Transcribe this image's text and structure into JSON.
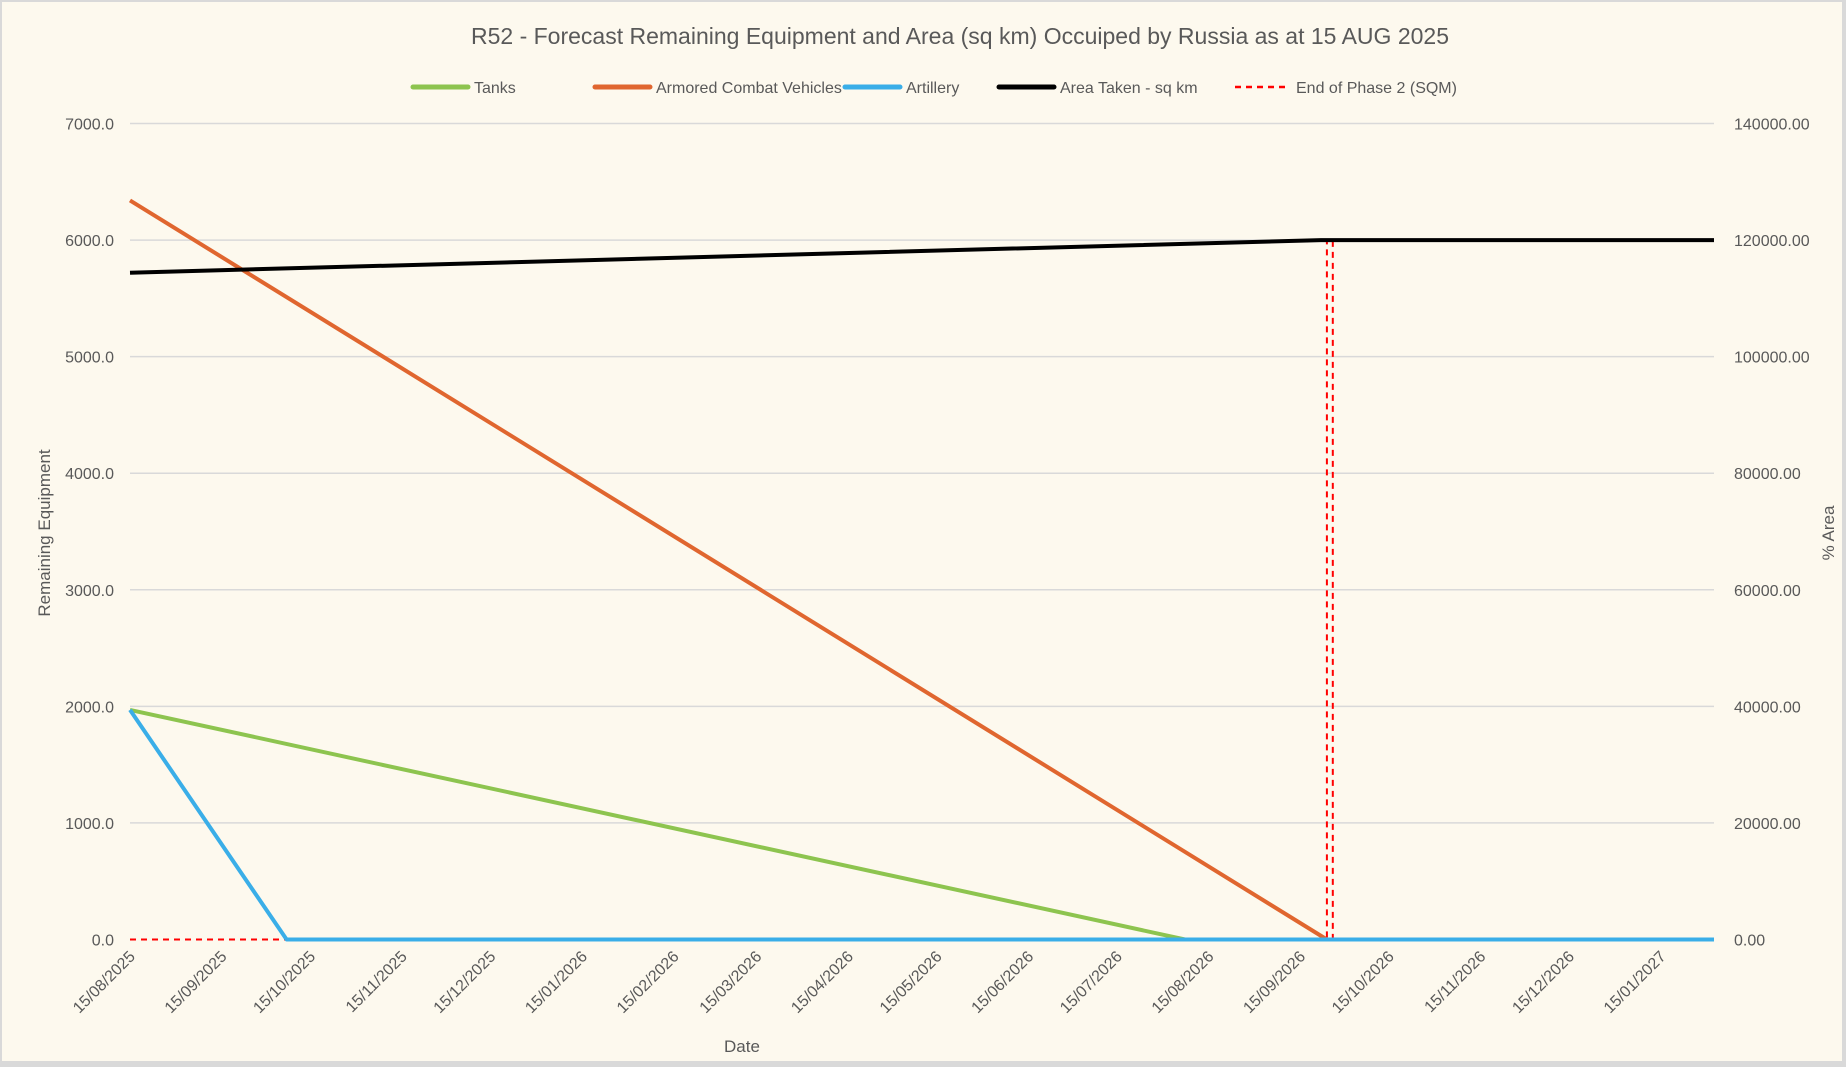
{
  "chart_data": {
    "type": "line",
    "title": "R52 - Forecast Remaining Equipment and Area (sq km) Occuiped by Russia as at 15 AUG 2025",
    "xlabel": "Date",
    "ylabel": "Remaining Equipment",
    "y2label": "% Area",
    "xlim": [
      "15/08/2025",
      "02/02/2027"
    ],
    "ylim": [
      0,
      7000
    ],
    "y2lim": [
      0,
      140000
    ],
    "yticks": [
      "0.0",
      "1000.0",
      "2000.0",
      "3000.0",
      "4000.0",
      "5000.0",
      "6000.0",
      "7000.0"
    ],
    "y2ticks": [
      "0.00",
      "20000.00",
      "40000.00",
      "60000.00",
      "80000.00",
      "100000.00",
      "120000.00",
      "140000.00"
    ],
    "xticks": [
      "15/08/2025",
      "15/09/2025",
      "15/10/2025",
      "15/11/2025",
      "15/12/2025",
      "15/01/2026",
      "15/02/2026",
      "15/03/2026",
      "15/04/2026",
      "15/05/2026",
      "15/06/2026",
      "15/07/2026",
      "15/08/2026",
      "15/09/2026",
      "15/10/2026",
      "15/11/2026",
      "15/12/2026",
      "15/01/2027"
    ],
    "grid": true,
    "legend": "top",
    "series": [
      {
        "name": "Tanks",
        "axis": "left",
        "color": "#8dc44f",
        "style": "solid",
        "x": [
          "15/08/2025",
          "07/08/2026",
          "02/02/2027"
        ],
        "y": [
          1970,
          0,
          0
        ]
      },
      {
        "name": "Armored Combat Vehicles",
        "axis": "left",
        "color": "#e0662f",
        "style": "solid",
        "x": [
          "15/08/2025",
          "24/09/2026",
          "02/02/2027"
        ],
        "y": [
          6340,
          0,
          0
        ]
      },
      {
        "name": "Artillery",
        "axis": "left",
        "color": "#3aaee8",
        "style": "solid",
        "x": [
          "15/08/2025",
          "07/10/2025",
          "02/02/2027"
        ],
        "y": [
          1970,
          0,
          0
        ]
      },
      {
        "name": "Area Taken - sq km",
        "axis": "right",
        "color": "#000000",
        "style": "solid",
        "x": [
          "15/08/2025",
          "22/09/2026",
          "02/02/2027"
        ],
        "y": [
          114400,
          120000,
          120000
        ]
      },
      {
        "name": "End of Phase 2 (SQM)",
        "axis": "right",
        "color": "#ff0000",
        "style": "dashed",
        "x": [
          "15/08/2025",
          "24/09/2026",
          "24/09/2026",
          "26/09/2026",
          "26/09/2026",
          "02/02/2027"
        ],
        "y": [
          0,
          0,
          120000,
          120000,
          0,
          0
        ]
      }
    ]
  }
}
